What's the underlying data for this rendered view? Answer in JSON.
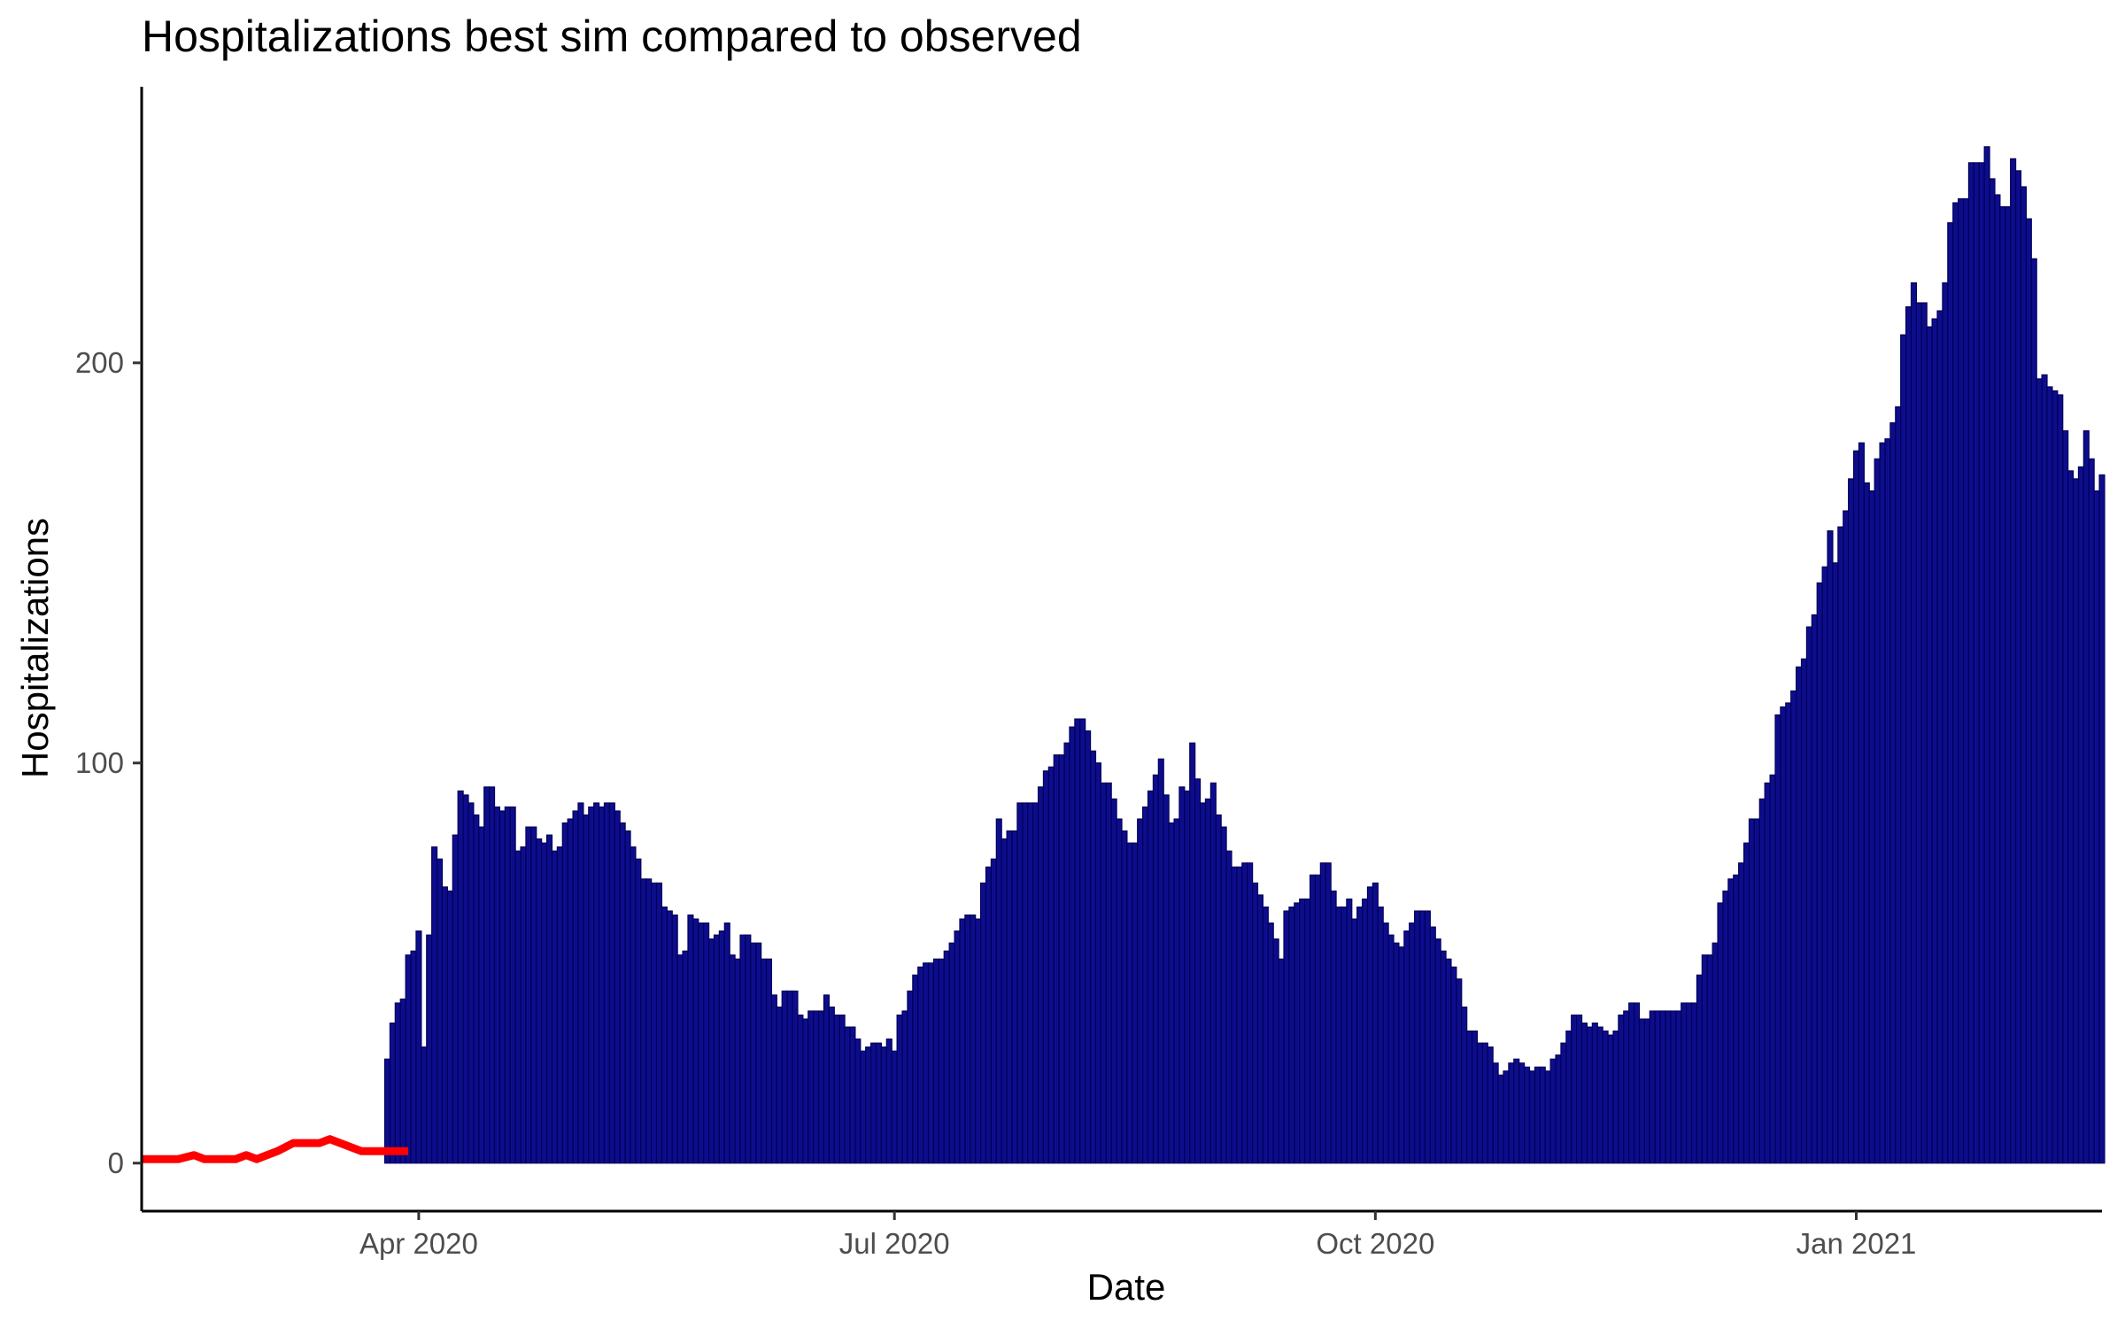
{
  "chart_data": {
    "type": "bar",
    "title": "Hospitalizations best sim compared to observed",
    "xlabel": "Date",
    "ylabel": "Hospitalizations",
    "x_ticks": [
      "Apr 2020",
      "Jul 2020",
      "Oct 2020",
      "Jan 2021"
    ],
    "x_tick_dates": [
      "2020-04-01",
      "2020-07-01",
      "2020-10-01",
      "2021-01-01"
    ],
    "y_ticks": [
      "0",
      "100",
      "200"
    ],
    "y_tick_values": [
      0,
      100,
      200
    ],
    "xlim": [
      "2020-02-08",
      "2021-02-17"
    ],
    "ylim": [
      -12,
      269
    ],
    "grid": false,
    "legend": "none",
    "bar_color": "#0d0d8c",
    "bar_outline": "#00005a",
    "line_color": "#ff0000",
    "bars": {
      "start_date": "2020-03-26",
      "values": [
        26,
        35,
        40,
        41,
        52,
        53,
        58,
        29,
        57,
        79,
        76,
        69,
        68,
        82,
        93,
        92,
        90,
        87,
        84,
        94,
        94,
        89,
        88,
        89,
        89,
        78,
        79,
        84,
        84,
        81,
        80,
        82,
        78,
        79,
        85,
        86,
        88,
        90,
        87,
        89,
        90,
        89,
        90,
        90,
        88,
        85,
        83,
        79,
        76,
        71,
        71,
        70,
        70,
        64,
        63,
        62,
        52,
        53,
        62,
        61,
        60,
        60,
        56,
        57,
        58,
        60,
        52,
        51,
        57,
        57,
        55,
        55,
        51,
        51,
        42,
        39,
        43,
        43,
        43,
        37,
        36,
        38,
        38,
        38,
        42,
        39,
        37,
        37,
        34,
        34,
        31,
        28,
        29,
        30,
        30,
        29,
        31,
        28,
        37,
        38,
        43,
        47,
        49,
        50,
        50,
        51,
        51,
        53,
        55,
        58,
        61,
        62,
        62,
        61,
        70,
        74,
        76,
        86,
        81,
        83,
        83,
        90,
        90,
        90,
        90,
        94,
        98,
        99,
        102,
        102,
        105,
        109,
        111,
        111,
        108,
        103,
        100,
        95,
        95,
        91,
        86,
        83,
        80,
        80,
        86,
        89,
        93,
        97,
        101,
        92,
        85,
        86,
        94,
        93,
        105,
        96,
        90,
        91,
        95,
        87,
        84,
        78,
        74,
        74,
        75,
        75,
        70,
        67,
        64,
        60,
        56,
        51,
        63,
        64,
        65,
        66,
        66,
        72,
        72,
        75,
        75,
        68,
        64,
        64,
        66,
        61,
        64,
        66,
        69,
        70,
        64,
        60,
        57,
        55,
        54,
        58,
        60,
        63,
        63,
        63,
        59,
        56,
        53,
        51,
        49,
        46,
        39,
        33,
        33,
        30,
        30,
        29,
        25,
        22,
        23,
        25,
        26,
        25,
        24,
        23,
        24,
        24,
        23,
        26,
        27,
        30,
        33,
        37,
        37,
        35,
        34,
        35,
        34,
        33,
        32,
        33,
        37,
        38,
        40,
        40,
        36,
        36,
        38,
        38,
        38,
        38,
        38,
        38,
        40,
        40,
        40,
        47,
        52,
        52,
        55,
        65,
        68,
        71,
        72,
        75,
        80,
        86,
        86,
        91,
        95,
        97,
        112,
        114,
        115,
        118,
        124,
        126,
        134,
        137,
        145,
        149,
        158,
        150,
        159,
        163,
        171,
        178,
        180,
        170,
        168,
        176,
        180,
        181,
        185,
        189,
        207,
        214,
        220,
        215,
        215,
        209,
        211,
        213,
        220,
        235,
        240,
        241,
        241,
        250,
        250,
        250,
        254,
        246,
        242,
        239,
        239,
        251,
        248,
        244,
        236,
        226,
        196,
        197,
        194,
        193,
        192,
        183,
        173,
        171,
        174,
        183,
        176,
        168,
        172
      ]
    },
    "sim_line": {
      "dates": [
        "2020-02-08",
        "2020-02-15",
        "2020-02-18",
        "2020-02-20",
        "2020-02-23",
        "2020-02-26",
        "2020-02-28",
        "2020-03-01",
        "2020-03-03",
        "2020-03-05",
        "2020-03-08",
        "2020-03-10",
        "2020-03-13",
        "2020-03-15",
        "2020-03-17",
        "2020-03-19",
        "2020-03-21",
        "2020-03-24",
        "2020-03-27",
        "2020-03-30"
      ],
      "values": [
        1,
        1,
        2,
        1,
        1,
        1,
        2,
        1,
        2,
        3,
        5,
        5,
        5,
        6,
        5,
        4,
        3,
        3,
        3,
        3
      ]
    }
  }
}
